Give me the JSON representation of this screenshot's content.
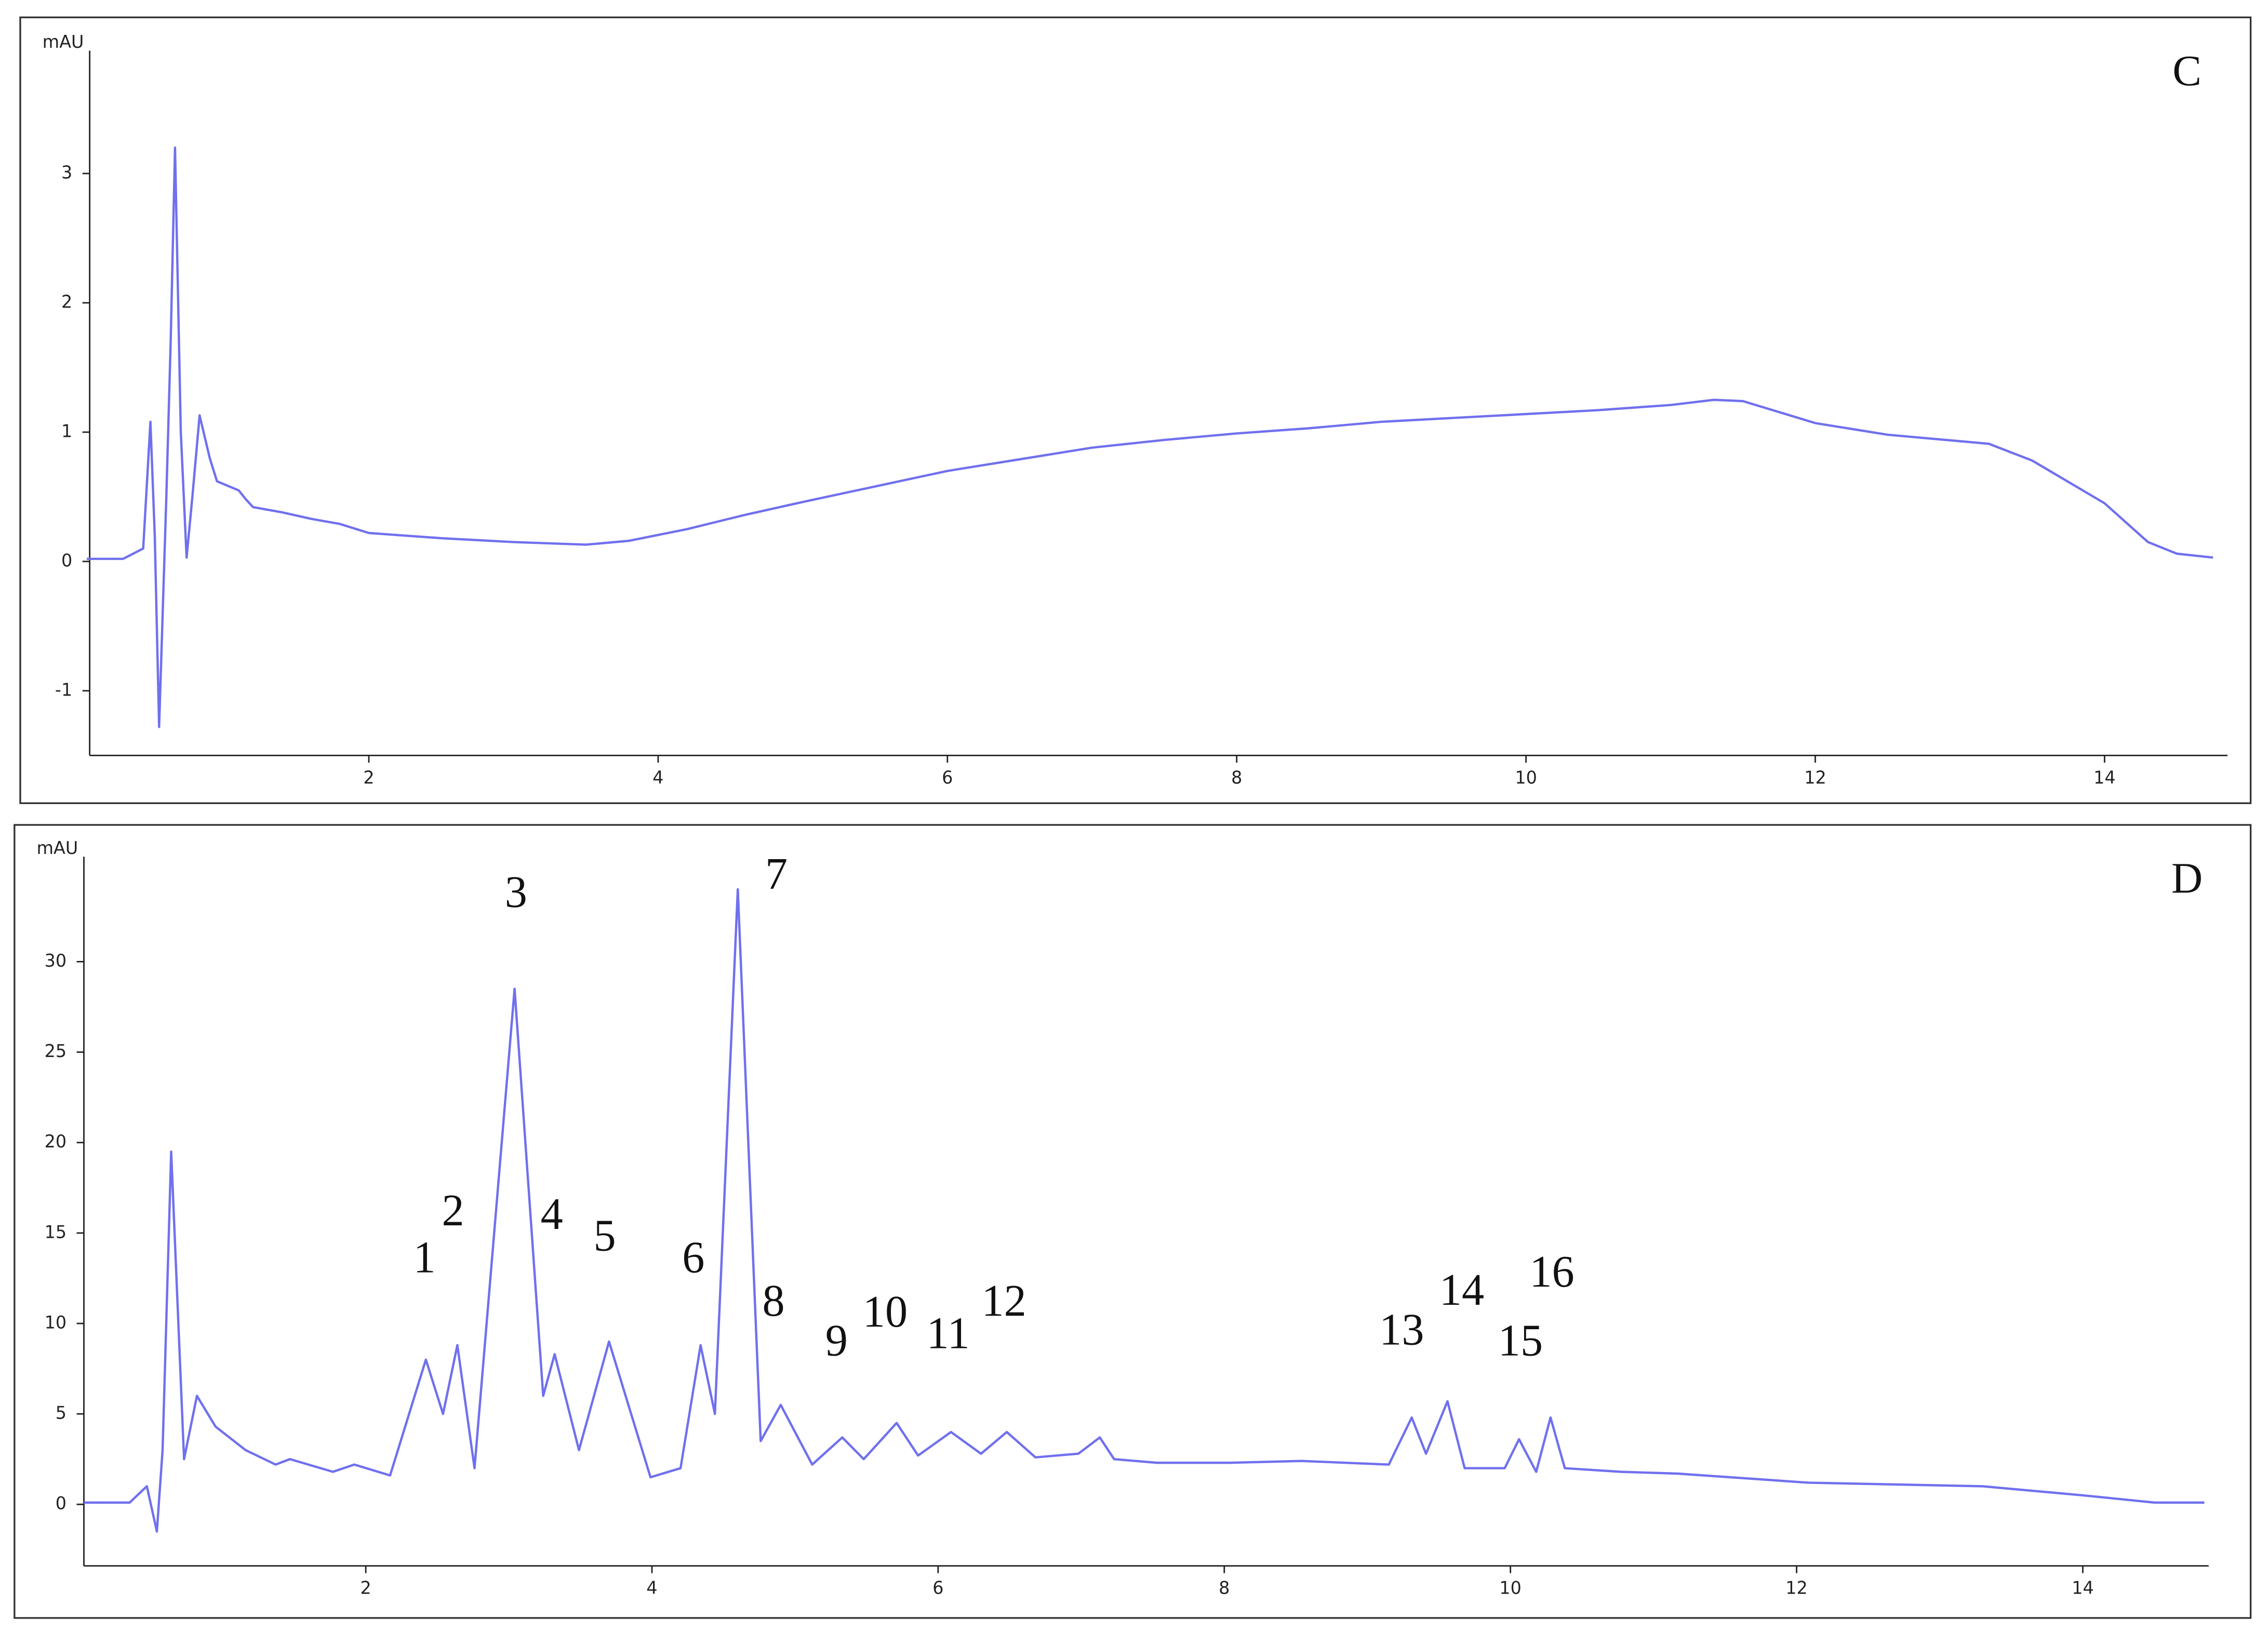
{
  "chart_data": [
    {
      "type": "line",
      "panel_label": "C",
      "y_label": "mAU",
      "x": [
        0.05,
        0.3,
        0.44,
        0.49,
        0.52,
        0.55,
        0.6,
        0.63,
        0.66,
        0.7,
        0.74,
        0.78,
        0.83,
        0.9,
        0.95,
        1.1,
        1.15,
        1.2,
        1.4,
        1.6,
        1.8,
        2.0,
        2.5,
        3.0,
        3.5,
        3.8,
        4.2,
        4.6,
        5.0,
        5.5,
        6.0,
        6.5,
        7.0,
        7.5,
        8.0,
        8.5,
        9.0,
        9.5,
        10.0,
        10.5,
        11.0,
        11.3,
        11.5,
        12.0,
        12.5,
        13.0,
        13.2,
        13.5,
        14.0,
        14.3,
        14.5,
        14.75
      ],
      "series": [
        {
          "color": "#7070ee",
          "values": [
            0.02,
            0.02,
            0.1,
            1.08,
            0.2,
            -1.28,
            0.5,
            1.7,
            3.2,
            1.0,
            0.03,
            0.5,
            1.13,
            0.8,
            0.62,
            0.55,
            0.48,
            0.42,
            0.38,
            0.33,
            0.29,
            0.22,
            0.18,
            0.15,
            0.13,
            0.16,
            0.25,
            0.36,
            0.46,
            0.58,
            0.7,
            0.79,
            0.88,
            0.94,
            0.99,
            1.03,
            1.08,
            1.11,
            1.14,
            1.17,
            1.21,
            1.25,
            1.24,
            1.07,
            0.98,
            0.93,
            0.91,
            0.78,
            0.45,
            0.15,
            0.06,
            0.03
          ]
        }
      ],
      "xlim": [
        0.07,
        14.85
      ],
      "ylim": [
        -1.5,
        3.95
      ],
      "xticks": [
        2,
        4,
        6,
        8,
        10,
        12,
        14
      ],
      "yticks": [
        -1,
        0,
        1,
        2,
        3
      ],
      "annotations": []
    },
    {
      "type": "line",
      "panel_label": "D",
      "y_label": "mAU",
      "x": [
        0.03,
        0.35,
        0.47,
        0.54,
        0.58,
        0.64,
        0.73,
        0.82,
        0.95,
        1.16,
        1.37,
        1.47,
        1.77,
        1.92,
        2.17,
        2.42,
        2.54,
        2.64,
        2.76,
        3.04,
        3.24,
        3.32,
        3.49,
        3.7,
        3.99,
        4.2,
        4.34,
        4.44,
        4.6,
        4.76,
        4.9,
        5.12,
        5.33,
        5.48,
        5.71,
        5.86,
        6.09,
        6.3,
        6.48,
        6.68,
        6.98,
        7.13,
        7.23,
        7.53,
        8.04,
        8.54,
        9.15,
        9.31,
        9.41,
        9.56,
        9.68,
        9.96,
        10.06,
        10.18,
        10.28,
        10.38,
        10.77,
        11.17,
        12.08,
        13.3,
        14.0,
        14.5,
        14.85
      ],
      "series": [
        {
          "color": "#7070ee",
          "values": [
            0.1,
            0.1,
            1.0,
            -1.5,
            3,
            19.5,
            2.5,
            6,
            4.3,
            3,
            2.2,
            2.5,
            1.8,
            2.2,
            1.6,
            8,
            5,
            8.8,
            2,
            28.5,
            6,
            8.3,
            3,
            9,
            1.5,
            2,
            8.8,
            5,
            34,
            3.5,
            5.5,
            2.2,
            3.7,
            2.5,
            4.5,
            2.7,
            4,
            2.8,
            4,
            2.6,
            2.8,
            3.7,
            2.5,
            2.3,
            2.3,
            2.4,
            2.2,
            4.8,
            2.8,
            5.7,
            2,
            2,
            3.6,
            1.8,
            4.8,
            2,
            1.8,
            1.7,
            1.2,
            1.0,
            0.5,
            0.1,
            0.1
          ]
        }
      ],
      "xlim": [
        0.03,
        14.88
      ],
      "ylim": [
        -3.4,
        35.8
      ],
      "xticks": [
        2,
        4,
        6,
        8,
        10,
        12,
        14
      ],
      "yticks": [
        0,
        5,
        10,
        15,
        20,
        25,
        30
      ],
      "annotations": [
        {
          "text": "1",
          "x": 2.41,
          "y": 13.4
        },
        {
          "text": "2",
          "x": 2.61,
          "y": 16
        },
        {
          "text": "3",
          "x": 3.05,
          "y": 33.6
        },
        {
          "text": "4",
          "x": 3.3,
          "y": 15.8
        },
        {
          "text": "5",
          "x": 3.67,
          "y": 14.6
        },
        {
          "text": "6",
          "x": 4.29,
          "y": 13.4
        },
        {
          "text": "7",
          "x": 4.87,
          "y": 34.6
        },
        {
          "text": "8",
          "x": 4.85,
          "y": 11
        },
        {
          "text": "9",
          "x": 5.29,
          "y": 8.8
        },
        {
          "text": "10",
          "x": 5.63,
          "y": 10.4
        },
        {
          "text": "11",
          "x": 6.07,
          "y": 9.2
        },
        {
          "text": "12",
          "x": 6.46,
          "y": 11
        },
        {
          "text": "13",
          "x": 9.24,
          "y": 9.4
        },
        {
          "text": "14",
          "x": 9.66,
          "y": 11.6
        },
        {
          "text": "15",
          "x": 10.07,
          "y": 8.8
        },
        {
          "text": "16",
          "x": 10.29,
          "y": 12.6
        }
      ]
    }
  ]
}
